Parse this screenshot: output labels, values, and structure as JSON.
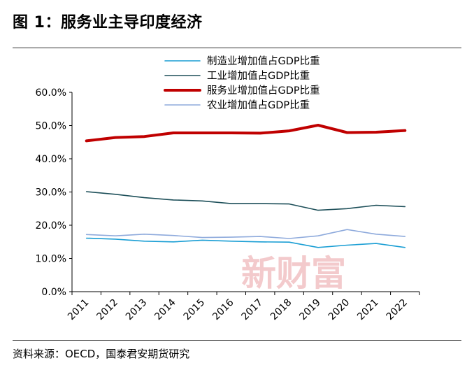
{
  "page": {
    "title": "图 1：服务业主导印度经济",
    "source": "资料来源：OECD，国泰君安期货研究",
    "watermark": "新财富"
  },
  "chart_data": {
    "type": "line",
    "title": "服务业主导印度经济",
    "xlabel": "",
    "ylabel": "",
    "ylim": [
      0,
      60
    ],
    "y_ticks": [
      "0.0%",
      "10.0%",
      "20.0%",
      "30.0%",
      "40.0%",
      "50.0%",
      "60.0%"
    ],
    "y_tick_values": [
      0,
      10,
      20,
      30,
      40,
      50,
      60
    ],
    "categories": [
      "2011",
      "2012",
      "2013",
      "2014",
      "2015",
      "2016",
      "2017",
      "2018",
      "2019",
      "2020",
      "2021",
      "2022"
    ],
    "legend_position": "top-center",
    "grid": false,
    "series": [
      {
        "name": "制造业增加值占GDP比重",
        "color": "#1a9ed4",
        "width": 1.6,
        "values": [
          16.1,
          15.8,
          15.2,
          15.0,
          15.5,
          15.2,
          15.0,
          14.9,
          13.3,
          14.0,
          14.5,
          13.3
        ]
      },
      {
        "name": "工业增加值占GDP比重",
        "color": "#1d4f59",
        "width": 1.6,
        "values": [
          30.1,
          29.3,
          28.3,
          27.6,
          27.3,
          26.5,
          26.5,
          26.4,
          24.5,
          25.0,
          26.0,
          25.6
        ]
      },
      {
        "name": "服务业增加值占GDP比重",
        "color": "#c00000",
        "width": 4,
        "values": [
          45.4,
          46.4,
          46.7,
          47.8,
          47.8,
          47.8,
          47.7,
          48.4,
          50.1,
          47.9,
          48.0,
          48.5
        ]
      },
      {
        "name": "农业增加值占GDP比重",
        "color": "#8eaadc",
        "width": 1.6,
        "values": [
          17.2,
          16.8,
          17.3,
          16.9,
          16.3,
          16.4,
          16.6,
          16.0,
          16.8,
          18.7,
          17.3,
          16.6
        ]
      }
    ]
  }
}
